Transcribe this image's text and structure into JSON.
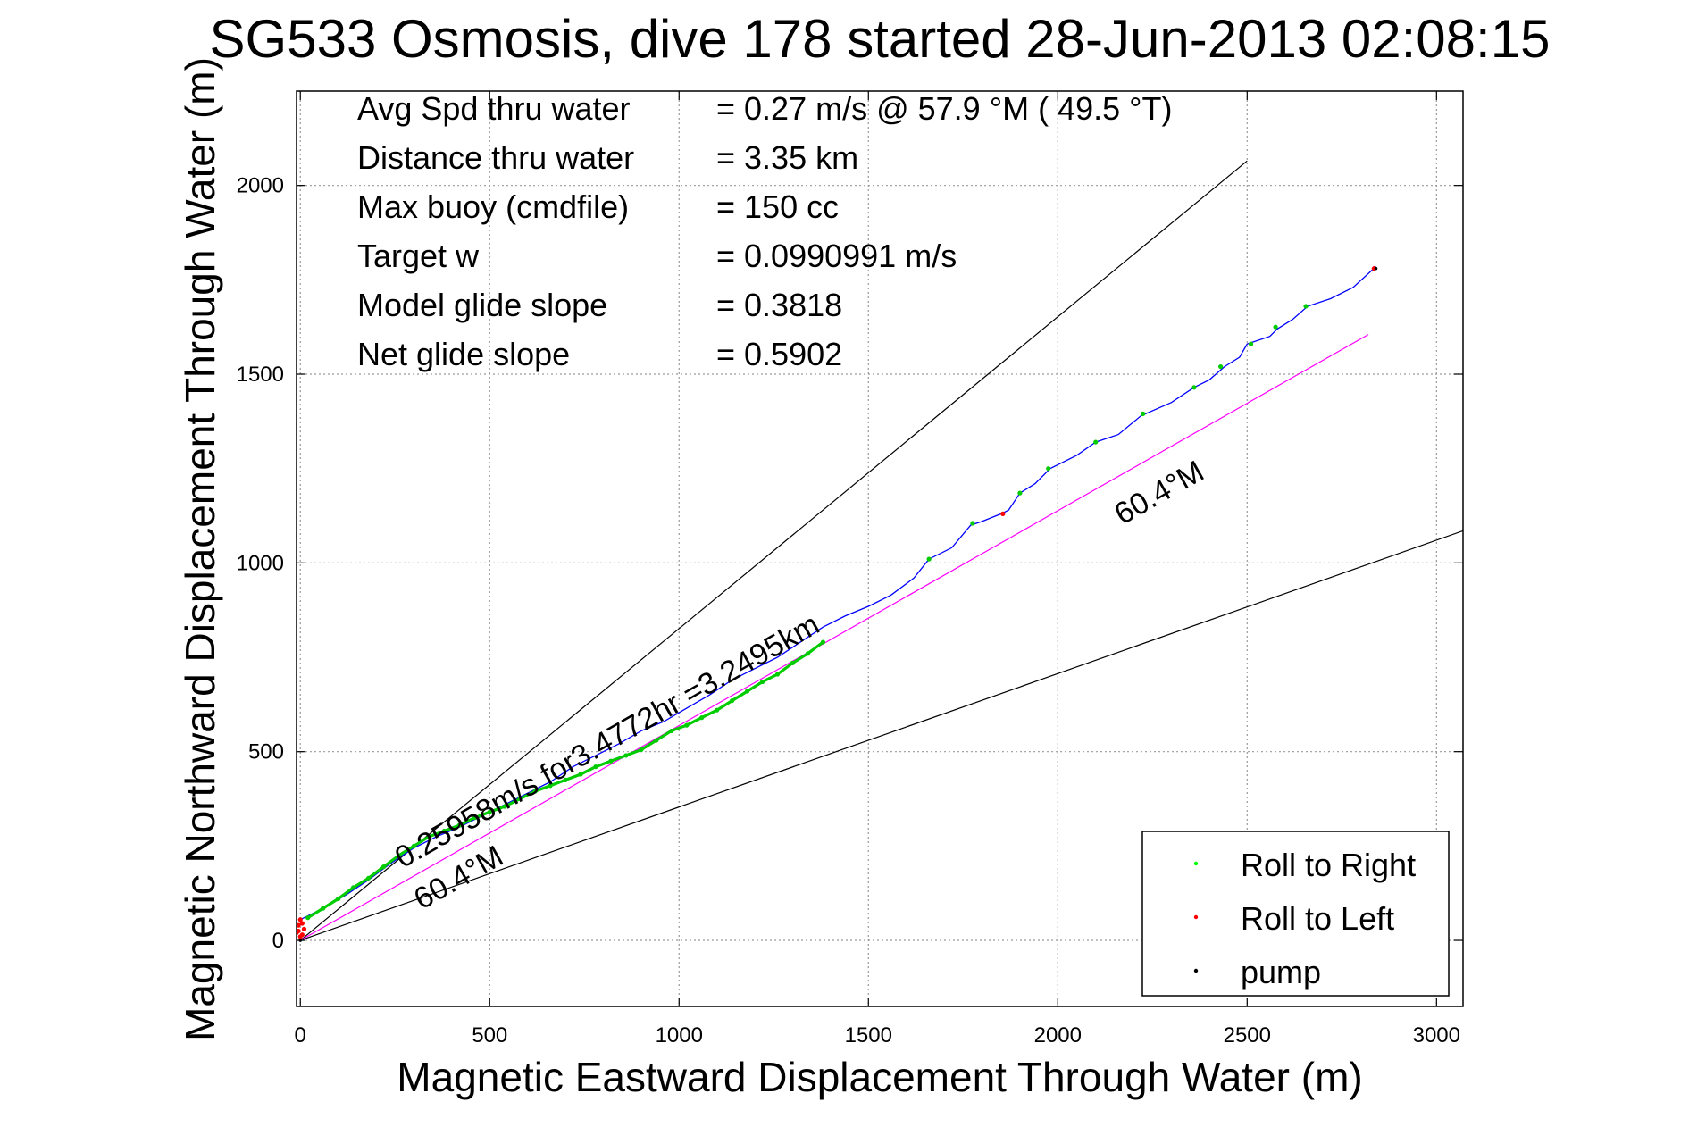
{
  "chart_data": {
    "type": "scatter",
    "title": "SG533 Osmosis, dive 178 started 28-Jun-2013 02:08:15",
    "xlabel": "Magnetic Eastward Displacement Through Water (m)",
    "ylabel": "Magnetic Northward Displacement Through Water (m)",
    "xlim": [
      -10,
      3070
    ],
    "ylim": [
      -175,
      2250
    ],
    "xticks": [
      0,
      500,
      1000,
      1500,
      2000,
      2500,
      3000
    ],
    "yticks": [
      0,
      500,
      1000,
      1500,
      2000
    ],
    "grid": true,
    "stats": [
      {
        "label": "Avg Spd thru water",
        "value": "=  0.27 m/s @  57.9 °M ( 49.5 °T)"
      },
      {
        "label": "Distance thru water",
        "value": "=  3.35 km"
      },
      {
        "label": "Max buoy (cmdfile)",
        "value": "= 150 cc"
      },
      {
        "label": "Target w",
        "value": "= 0.0990991 m/s"
      },
      {
        "label": "Model glide slope",
        "value": "= 0.3818"
      },
      {
        "label": "Net glide slope",
        "value": "= 0.5902"
      }
    ],
    "annotations": [
      {
        "text": "0.25958m/s for3.4772hr =3.2495km",
        "x": 270,
        "y": 190,
        "angle_deg": 29.6
      },
      {
        "text": "60.4°M",
        "x": 320,
        "y": 80,
        "angle_deg": 29.6
      },
      {
        "text": "60.4°M",
        "x": 2170,
        "y": 1100,
        "angle_deg": 29.6
      }
    ],
    "reference_lines": [
      {
        "name": "upper envelope",
        "color": "#000000",
        "x": [
          0,
          2500
        ],
        "y": [
          0,
          2065
        ]
      },
      {
        "name": "lower envelope",
        "color": "#000000",
        "x": [
          0,
          3070
        ],
        "y": [
          0,
          1085
        ]
      },
      {
        "name": "60.4°M heading",
        "color": "#ff00ff",
        "x": [
          0,
          2820
        ],
        "y": [
          0,
          1605
        ]
      }
    ],
    "series": [
      {
        "name": "track",
        "color": "#0000ff",
        "x": [
          0,
          60,
          120,
          180,
          240,
          300,
          360,
          420,
          480,
          540,
          600,
          660,
          720,
          780,
          840,
          900,
          960,
          1020,
          1080,
          1140,
          1200,
          1260,
          1320,
          1380,
          1440,
          1500,
          1560,
          1620,
          1660,
          1720,
          1770,
          1800,
          1850,
          1870,
          1900,
          1940,
          1980,
          2050,
          2100,
          2160,
          2220,
          2300,
          2360,
          2400,
          2440,
          2480,
          2500,
          2560,
          2580,
          2620,
          2660,
          2720,
          2780,
          2840
        ],
        "y": [
          55,
          85,
          120,
          160,
          205,
          245,
          275,
          300,
          330,
          360,
          390,
          420,
          460,
          490,
          520,
          555,
          580,
          615,
          650,
          690,
          720,
          750,
          790,
          830,
          860,
          885,
          915,
          960,
          1010,
          1040,
          1100,
          1110,
          1130,
          1140,
          1185,
          1210,
          1250,
          1285,
          1320,
          1340,
          1390,
          1425,
          1465,
          1485,
          1520,
          1545,
          1580,
          1600,
          1620,
          1645,
          1680,
          1700,
          1730,
          1785
        ]
      },
      {
        "name": "Roll to Right",
        "color": "#00cc00",
        "x": [
          20,
          60,
          100,
          140,
          180,
          220,
          260,
          300,
          340,
          380,
          420,
          460,
          500,
          540,
          580,
          620,
          660,
          700,
          740,
          780,
          820,
          860,
          900,
          940,
          980,
          1020,
          1060,
          1100,
          1140,
          1180,
          1220,
          1260,
          1300,
          1340,
          1380,
          1660,
          1775,
          1900,
          1975,
          2100,
          2225,
          2360,
          2430,
          2510,
          2575,
          2655
        ],
        "y": [
          60,
          85,
          110,
          140,
          165,
          195,
          225,
          250,
          275,
          290,
          305,
          325,
          340,
          355,
          375,
          395,
          410,
          425,
          440,
          460,
          475,
          490,
          505,
          530,
          555,
          570,
          590,
          610,
          635,
          660,
          685,
          705,
          735,
          760,
          790,
          1010,
          1105,
          1185,
          1250,
          1320,
          1395,
          1465,
          1520,
          1580,
          1625,
          1680
        ]
      },
      {
        "name": "Roll to Left",
        "color": "#ff0000",
        "x": [
          -10,
          -5,
          0,
          5,
          10,
          5,
          0,
          -5,
          1855,
          2835
        ],
        "y": [
          20,
          40,
          55,
          45,
          30,
          15,
          10,
          25,
          1130,
          1780
        ]
      },
      {
        "name": "pump",
        "color": "#000000",
        "x": [
          0,
          2840
        ],
        "y": [
          0,
          1780
        ]
      }
    ],
    "legend": {
      "position": "bottom-right",
      "entries": [
        {
          "label": "Roll to Right",
          "color": "#00ff00"
        },
        {
          "label": "Roll to Left",
          "color": "#ff0000"
        },
        {
          "label": "pump",
          "color": "#000000"
        }
      ]
    }
  }
}
